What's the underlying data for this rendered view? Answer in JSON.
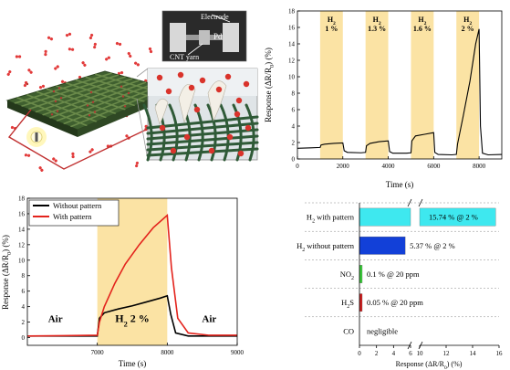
{
  "illustration": {
    "electrode_label": "Electrode",
    "pd_label": "Pd",
    "cnt_label": "CNT yarn"
  },
  "chart_data": [
    {
      "id": "pulse",
      "type": "line",
      "xlabel": "Time (s)",
      "ylabel": "Response (ΔR/R",
      "ylabel_sub": "0",
      "ylabel_tail": ") (%)",
      "xlim": [
        0,
        9000
      ],
      "ylim": [
        0,
        18
      ],
      "xticks": [
        0,
        2000,
        4000,
        6000,
        8000
      ],
      "yticks": [
        0,
        2,
        4,
        6,
        8,
        10,
        12,
        14,
        16,
        18
      ],
      "bands": [
        {
          "x0": 1000,
          "x1": 2000,
          "gas": "H",
          "sub": "2",
          "conc": "1 %"
        },
        {
          "x0": 3000,
          "x1": 4000,
          "gas": "H",
          "sub": "2",
          "conc": "1.3 %"
        },
        {
          "x0": 5000,
          "x1": 6000,
          "gas": "H",
          "sub": "2",
          "conc": "1.6 %"
        },
        {
          "x0": 7000,
          "x1": 8000,
          "gas": "H",
          "sub": "2",
          "conc": "2 %"
        }
      ],
      "series": [
        {
          "color": "#000000",
          "points": [
            [
              0,
              1.3
            ],
            [
              600,
              1.35
            ],
            [
              1000,
              1.4
            ],
            [
              1040,
              1.7
            ],
            [
              1200,
              1.8
            ],
            [
              1600,
              1.9
            ],
            [
              2000,
              1.95
            ],
            [
              2060,
              1.0
            ],
            [
              2200,
              0.8
            ],
            [
              2800,
              0.75
            ],
            [
              3000,
              0.8
            ],
            [
              3040,
              1.6
            ],
            [
              3200,
              1.9
            ],
            [
              3600,
              2.1
            ],
            [
              4000,
              2.2
            ],
            [
              4060,
              0.9
            ],
            [
              4200,
              0.7
            ],
            [
              4800,
              0.7
            ],
            [
              5000,
              0.75
            ],
            [
              5040,
              2.2
            ],
            [
              5200,
              2.8
            ],
            [
              5600,
              3.0
            ],
            [
              6000,
              3.2
            ],
            [
              6050,
              0.8
            ],
            [
              6200,
              0.55
            ],
            [
              6800,
              0.5
            ],
            [
              7000,
              0.55
            ],
            [
              7050,
              1.8
            ],
            [
              7300,
              5.2
            ],
            [
              7600,
              9.5
            ],
            [
              7850,
              14.0
            ],
            [
              8000,
              15.8
            ],
            [
              8060,
              4.0
            ],
            [
              8150,
              0.7
            ],
            [
              8400,
              0.5
            ],
            [
              9000,
              0.55
            ]
          ]
        }
      ]
    },
    {
      "id": "compare",
      "type": "line",
      "xlabel": "Time (s)",
      "ylabel": "Response (ΔR/R",
      "ylabel_sub": "0",
      "ylabel_tail": ") (%)",
      "xlim": [
        6000,
        9000
      ],
      "ylim": [
        -1,
        18
      ],
      "xticks": [
        7000,
        8000,
        9000
      ],
      "yticks": [
        0,
        2,
        4,
        6,
        8,
        10,
        12,
        14,
        16,
        18
      ],
      "band": {
        "x0": 7000,
        "x1": 8000
      },
      "annotations": [
        {
          "text": "Air",
          "x": 6400,
          "y": 1.3
        },
        {
          "text": "H",
          "sub": "2",
          "tail": " 2 %",
          "x": 7500,
          "y": 1.3
        },
        {
          "text": "Air",
          "x": 8600,
          "y": 1.3
        }
      ],
      "series": [
        {
          "name": "Without pattern",
          "color": "#000000",
          "points": [
            [
              6000,
              0.2
            ],
            [
              6500,
              0.2
            ],
            [
              7000,
              0.2
            ],
            [
              7030,
              2.5
            ],
            [
              7100,
              3.2
            ],
            [
              7300,
              3.7
            ],
            [
              7500,
              4.1
            ],
            [
              7700,
              4.6
            ],
            [
              7900,
              5.1
            ],
            [
              8000,
              5.4
            ],
            [
              8050,
              3.0
            ],
            [
              8120,
              0.6
            ],
            [
              8300,
              0.2
            ],
            [
              9000,
              0.2
            ]
          ]
        },
        {
          "name": "With pattern",
          "color": "#e3231c",
          "points": [
            [
              6000,
              0.2
            ],
            [
              6500,
              0.25
            ],
            [
              7000,
              0.3
            ],
            [
              7030,
              2.0
            ],
            [
              7100,
              4.0
            ],
            [
              7250,
              7.0
            ],
            [
              7400,
              9.5
            ],
            [
              7600,
              12.0
            ],
            [
              7800,
              14.2
            ],
            [
              8000,
              15.8
            ],
            [
              8060,
              9.0
            ],
            [
              8150,
              2.5
            ],
            [
              8300,
              0.6
            ],
            [
              8600,
              0.3
            ],
            [
              9000,
              0.3
            ]
          ]
        }
      ]
    },
    {
      "id": "selectivity",
      "type": "bar",
      "orientation": "horizontal",
      "xlabel": "Response (ΔR/R",
      "xlabel_sub": "0",
      "xlabel_tail": ") (%)",
      "axis_break": true,
      "left_xlim": [
        0,
        6
      ],
      "right_xlim": [
        10,
        16
      ],
      "xticks_left": [
        0,
        2,
        4,
        6
      ],
      "xticks_right": [
        10,
        12,
        14,
        16
      ],
      "categories": [
        {
          "name": "H",
          "sub": "2",
          "tail": " with pattern"
        },
        {
          "name": "H",
          "sub": "2",
          "tail": " without pattern"
        },
        {
          "name": "NO",
          "sub": "2",
          "tail": ""
        },
        {
          "name": "H",
          "sub": "2",
          "tail": "S"
        },
        {
          "name": "CO",
          "sub": "",
          "tail": ""
        }
      ],
      "values": [
        15.74,
        5.37,
        0.1,
        0.05,
        0
      ],
      "colors": [
        "#3ee8ef",
        "#1240d8",
        "#3ad13a",
        "#d21f1f",
        "#ffffff"
      ],
      "labels": [
        "15.74 % @ 2 %",
        "5.37 % @ 2 %",
        "0.1 % @ 20 ppm",
        "0.05 % @ 20 ppm",
        "negligible"
      ]
    }
  ]
}
